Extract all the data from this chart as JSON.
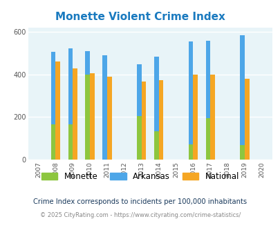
{
  "title": "Monette Violent Crime Index",
  "years": [
    2007,
    2008,
    2009,
    2010,
    2011,
    2012,
    2013,
    2014,
    2015,
    2016,
    2017,
    2018,
    2019,
    2020
  ],
  "monette": [
    null,
    165,
    165,
    400,
    null,
    null,
    205,
    133,
    null,
    70,
    193,
    null,
    68,
    null
  ],
  "arkansas": [
    null,
    505,
    520,
    510,
    488,
    null,
    448,
    483,
    null,
    553,
    558,
    null,
    583,
    null
  ],
  "national": [
    null,
    460,
    428,
    405,
    390,
    null,
    365,
    372,
    null,
    400,
    397,
    null,
    379,
    null
  ],
  "ylim": [
    0,
    620
  ],
  "yticks": [
    0,
    200,
    400,
    600
  ],
  "bar_width": 0.27,
  "color_monette": "#8dc63f",
  "color_arkansas": "#4da6e8",
  "color_national": "#f5a623",
  "bg_color": "#e8f4f8",
  "title_color": "#1a7abf",
  "grid_color": "#ffffff",
  "footnote1": "Crime Index corresponds to incidents per 100,000 inhabitants",
  "footnote2": "© 2025 CityRating.com - https://www.cityrating.com/crime-statistics/"
}
